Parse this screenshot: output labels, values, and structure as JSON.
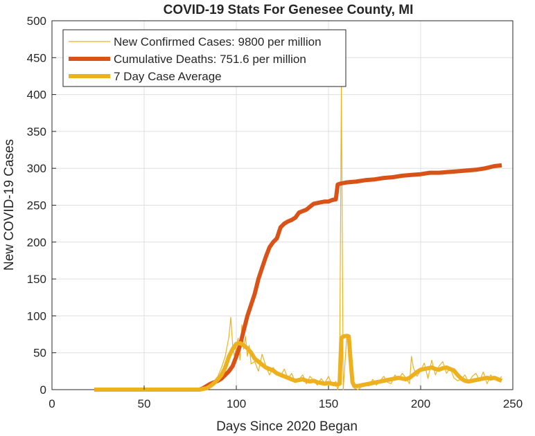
{
  "chart_data": {
    "type": "line",
    "title": "COVID-19 Stats For Genesee County, MI",
    "xlabel": "Days Since 2020 Began",
    "ylabel": "New COVID-19 Cases",
    "xlim": [
      0,
      250
    ],
    "ylim": [
      0,
      500
    ],
    "xticks": [
      0,
      50,
      100,
      150,
      200,
      250
    ],
    "yticks": [
      0,
      50,
      100,
      150,
      200,
      250,
      300,
      350,
      400,
      450,
      500
    ],
    "grid": true,
    "legend_position": "top-left",
    "colors": {
      "new_cases": "#EDB120",
      "deaths": "#D95319",
      "avg": "#EDB120",
      "axis": "#262626",
      "grid": "#dfdfdf"
    },
    "series": [
      {
        "name": "New Confirmed Cases: 9800 per million",
        "key": "new_cases",
        "x": [
          23,
          30,
          40,
          50,
          60,
          70,
          80,
          85,
          88,
          90,
          92,
          94,
          96,
          97,
          98,
          99,
          100,
          101,
          102,
          103,
          104,
          105,
          106,
          107,
          108,
          110,
          112,
          114,
          116,
          118,
          120,
          122,
          124,
          126,
          128,
          130,
          132,
          134,
          136,
          138,
          140,
          142,
          144,
          146,
          148,
          150,
          152,
          154,
          155,
          156,
          157,
          158,
          160,
          162,
          163,
          164,
          166,
          168,
          170,
          172,
          174,
          176,
          178,
          180,
          182,
          184,
          186,
          188,
          190,
          192,
          194,
          195,
          196,
          198,
          200,
          202,
          204,
          206,
          208,
          210,
          212,
          214,
          216,
          218,
          220,
          222,
          224,
          226,
          228,
          230,
          232,
          234,
          236,
          238,
          240,
          242,
          244
        ],
        "y": [
          0,
          0,
          0,
          0,
          0,
          0,
          0,
          3,
          12,
          18,
          30,
          45,
          72,
          98,
          60,
          45,
          58,
          70,
          40,
          88,
          55,
          72,
          45,
          60,
          35,
          38,
          25,
          48,
          32,
          20,
          30,
          22,
          18,
          28,
          15,
          22,
          10,
          14,
          20,
          8,
          18,
          12,
          6,
          15,
          9,
          18,
          6,
          11,
          0,
          10,
          410,
          0,
          75,
          70,
          10,
          2,
          0,
          4,
          8,
          5,
          14,
          6,
          12,
          18,
          10,
          8,
          20,
          14,
          22,
          16,
          8,
          45,
          30,
          18,
          26,
          36,
          15,
          40,
          20,
          32,
          38,
          22,
          30,
          16,
          12,
          14,
          20,
          10,
          18,
          22,
          12,
          24,
          8,
          20,
          14,
          12,
          18
        ]
      },
      {
        "name": "Cumulative Deaths: 751.6 per million",
        "key": "deaths",
        "x": [
          23,
          40,
          60,
          80,
          82,
          84,
          86,
          88,
          90,
          92,
          94,
          96,
          98,
          100,
          102,
          104,
          106,
          108,
          110,
          112,
          114,
          116,
          118,
          120,
          122,
          124,
          126,
          128,
          130,
          132,
          134,
          136,
          138,
          140,
          142,
          144,
          146,
          148,
          150,
          152,
          154,
          155,
          156,
          158,
          160,
          165,
          170,
          175,
          180,
          185,
          190,
          195,
          200,
          205,
          210,
          215,
          220,
          225,
          230,
          235,
          240,
          244
        ],
        "y": [
          0,
          0,
          0,
          0,
          2,
          5,
          8,
          10,
          12,
          15,
          20,
          25,
          32,
          45,
          60,
          80,
          100,
          115,
          130,
          150,
          165,
          180,
          193,
          200,
          205,
          220,
          225,
          228,
          230,
          233,
          240,
          242,
          244,
          248,
          252,
          253,
          254,
          255,
          255,
          257,
          258,
          278,
          279,
          280,
          281,
          282,
          284,
          285,
          287,
          288,
          290,
          291,
          292,
          294,
          294,
          295,
          296,
          297,
          298,
          300,
          303,
          304
        ]
      },
      {
        "name": "7 Day Case Average",
        "key": "avg",
        "x": [
          23,
          30,
          40,
          50,
          60,
          70,
          80,
          84,
          86,
          88,
          90,
          92,
          94,
          96,
          98,
          100,
          102,
          104,
          106,
          108,
          110,
          112,
          114,
          116,
          118,
          120,
          122,
          124,
          126,
          128,
          130,
          132,
          134,
          136,
          138,
          140,
          142,
          144,
          146,
          148,
          150,
          152,
          154,
          155,
          156,
          157,
          158,
          160,
          161,
          162,
          163,
          164,
          166,
          168,
          170,
          172,
          174,
          176,
          178,
          180,
          182,
          184,
          186,
          188,
          190,
          192,
          194,
          196,
          198,
          200,
          202,
          204,
          206,
          208,
          210,
          212,
          214,
          216,
          218,
          220,
          222,
          224,
          226,
          228,
          230,
          232,
          234,
          236,
          238,
          240,
          242,
          244
        ],
        "y": [
          0,
          0,
          0,
          0,
          0,
          0,
          0,
          2,
          5,
          9,
          14,
          20,
          30,
          45,
          55,
          62,
          63,
          60,
          56,
          50,
          42,
          38,
          34,
          30,
          28,
          26,
          22,
          20,
          18,
          16,
          14,
          12,
          13,
          14,
          12,
          11,
          12,
          10,
          9,
          8,
          9,
          8,
          7,
          7,
          8,
          70,
          72,
          73,
          72,
          40,
          10,
          5,
          5,
          6,
          7,
          8,
          9,
          10,
          11,
          12,
          13,
          14,
          15,
          16,
          15,
          14,
          16,
          20,
          24,
          27,
          28,
          29,
          30,
          28,
          27,
          29,
          30,
          28,
          26,
          20,
          15,
          12,
          11,
          12,
          13,
          14,
          15,
          16,
          15,
          16,
          14,
          12
        ]
      }
    ]
  }
}
